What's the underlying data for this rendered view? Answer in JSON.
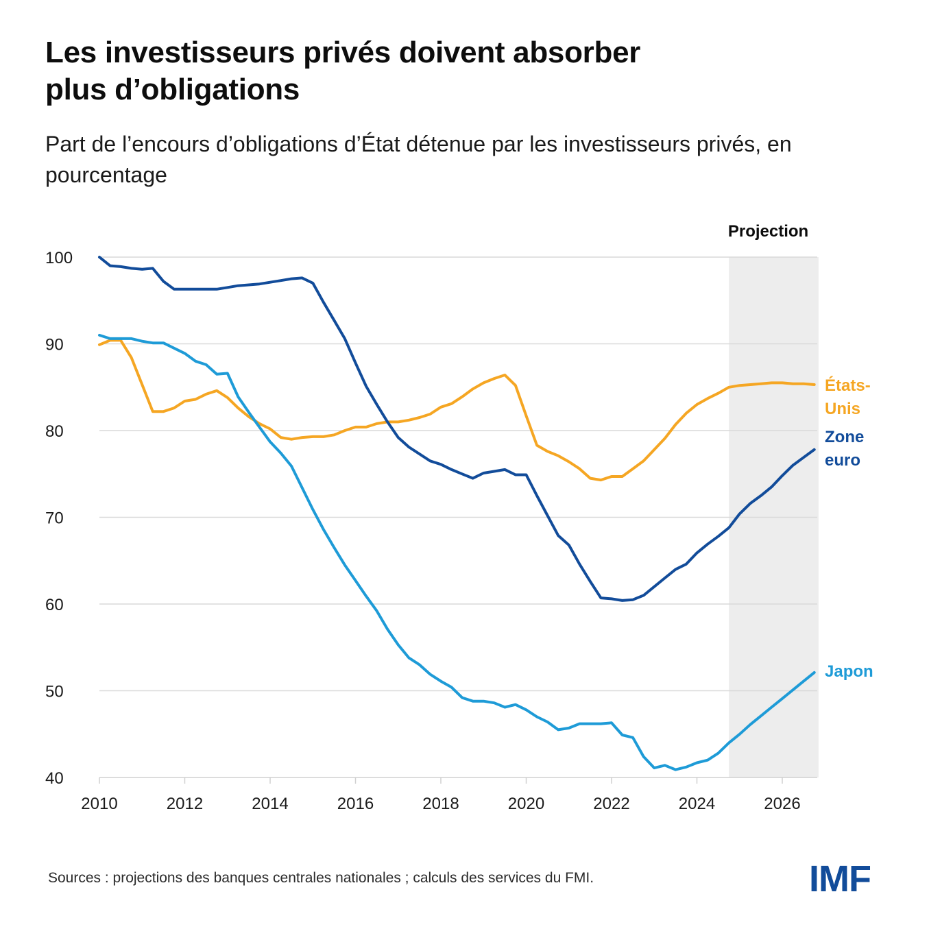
{
  "header": {
    "title": "Les investisseurs privés doivent absorber plus d’obligations",
    "subtitle": "Part de l’encours d’obligations d’État détenue par les investisseurs privés, en pourcentage"
  },
  "footer": {
    "sources": "Sources : projections des banques centrales nationales ; calculs des services du FMI.",
    "logo": "IMF",
    "logo_color": "#124C9A"
  },
  "chart_data": {
    "type": "line",
    "title": "Les investisseurs privés doivent absorber plus d’obligations",
    "subtitle": "Part de l’encours d’obligations d’État détenue par les investisseurs privés, en pourcentage",
    "xlabel": "",
    "ylabel": "",
    "frequency": "quarterly",
    "x_start": 2010.0,
    "x_step": 0.25,
    "xlim": [
      2010,
      2026.85
    ],
    "ylim": [
      40,
      100
    ],
    "x_ticks": [
      "2010",
      "2012",
      "2014",
      "2016",
      "2018",
      "2020",
      "2022",
      "2024",
      "2026"
    ],
    "x_tick_values": [
      2010,
      2012,
      2014,
      2016,
      2018,
      2020,
      2022,
      2024,
      2026
    ],
    "y_ticks": [
      "40",
      "50",
      "60",
      "70",
      "80",
      "90",
      "100"
    ],
    "y_tick_values": [
      40,
      50,
      60,
      70,
      80,
      90,
      100
    ],
    "grid": "horizontal",
    "projection": {
      "label": "Projection",
      "from": 2024.75,
      "to": 2026.85,
      "color": "#EDEDED"
    },
    "legend": "inline-right",
    "series": [
      {
        "name": "États-Unis",
        "label_lines": [
          "États-",
          "Unis"
        ],
        "color": "#F5A623",
        "values": [
          89.9,
          90.4,
          90.4,
          88.4,
          85.3,
          82.2,
          82.2,
          82.6,
          83.4,
          83.6,
          84.2,
          84.6,
          83.8,
          82.6,
          81.6,
          80.8,
          80.2,
          79.2,
          79.0,
          79.2,
          79.3,
          79.3,
          79.5,
          80.0,
          80.4,
          80.4,
          80.8,
          81.0,
          81.0,
          81.2,
          81.5,
          81.9,
          82.7,
          83.1,
          83.9,
          84.8,
          85.5,
          86.0,
          86.4,
          85.2,
          81.7,
          78.3,
          77.6,
          77.1,
          76.4,
          75.6,
          74.5,
          74.3,
          74.7,
          74.7,
          75.6,
          76.5,
          77.8,
          79.1,
          80.7,
          82.0,
          83.0,
          83.7,
          84.3,
          85.0,
          85.2,
          85.3,
          85.4,
          85.5,
          85.5,
          85.4,
          85.4,
          85.3
        ]
      },
      {
        "name": "Zone euro",
        "label_lines": [
          "Zone",
          "euro"
        ],
        "color": "#124C9A",
        "values": [
          100.0,
          99.0,
          98.9,
          98.7,
          98.6,
          98.7,
          97.2,
          96.3,
          96.3,
          96.3,
          96.3,
          96.3,
          96.5,
          96.7,
          96.8,
          96.9,
          97.1,
          97.3,
          97.5,
          97.6,
          97.0,
          94.8,
          92.7,
          90.6,
          87.8,
          85.1,
          83.0,
          81.0,
          79.2,
          78.1,
          77.3,
          76.5,
          76.1,
          75.5,
          75.0,
          74.5,
          75.1,
          75.3,
          75.5,
          74.9,
          74.9,
          72.5,
          70.2,
          67.9,
          66.8,
          64.6,
          62.6,
          60.7,
          60.6,
          60.4,
          60.5,
          61.0,
          62.0,
          63.0,
          64.0,
          64.6,
          65.9,
          66.9,
          67.8,
          68.8,
          70.4,
          71.6,
          72.5,
          73.5,
          74.8,
          76.0,
          76.9,
          77.8
        ]
      },
      {
        "name": "Japon",
        "label_lines": [
          "Japon"
        ],
        "color": "#1E9BD7",
        "values": [
          91.0,
          90.6,
          90.6,
          90.6,
          90.3,
          90.1,
          90.1,
          89.5,
          88.9,
          88.0,
          87.6,
          86.5,
          86.6,
          83.9,
          82.1,
          80.4,
          78.7,
          77.4,
          75.9,
          73.4,
          70.9,
          68.6,
          66.5,
          64.5,
          62.7,
          60.9,
          59.2,
          57.1,
          55.3,
          53.8,
          53.0,
          51.9,
          51.1,
          50.4,
          49.2,
          48.8,
          48.8,
          48.6,
          48.1,
          48.4,
          47.8,
          47.0,
          46.4,
          45.5,
          45.7,
          46.2,
          46.2,
          46.2,
          46.3,
          44.9,
          44.6,
          42.4,
          41.1,
          41.4,
          40.9,
          41.2,
          41.7,
          42.0,
          42.8,
          44.0,
          45.0,
          46.1,
          47.1,
          48.1,
          49.1,
          50.1,
          51.1,
          52.1
        ]
      }
    ]
  }
}
